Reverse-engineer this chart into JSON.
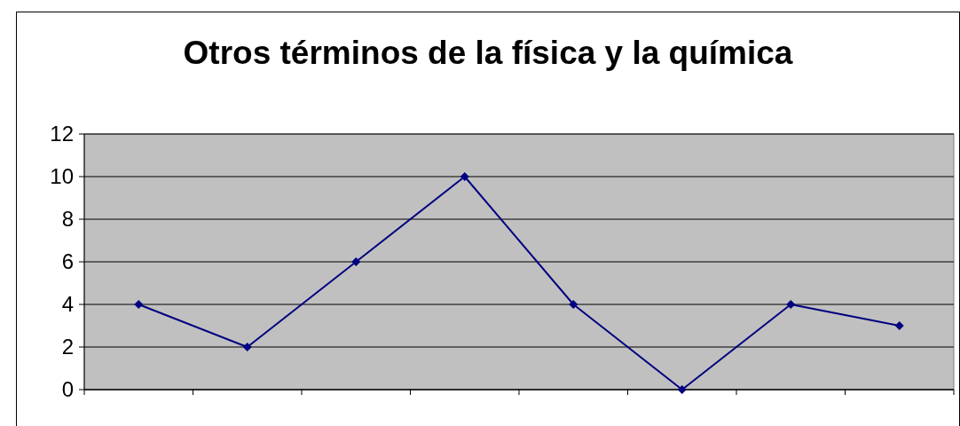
{
  "chart_data": {
    "type": "line",
    "title": "Otros términos de la física y la química",
    "categories": [
      null,
      null,
      null,
      null,
      null,
      null,
      null,
      null
    ],
    "series": [
      {
        "color": "#000080",
        "values": [
          4,
          2,
          6,
          10,
          4,
          0,
          4,
          3
        ]
      }
    ],
    "ylim": [
      0,
      12
    ],
    "yticks": [
      0,
      2,
      4,
      6,
      8,
      10,
      12
    ],
    "grid": "y",
    "marker": "diamond",
    "line_style": "solid"
  }
}
